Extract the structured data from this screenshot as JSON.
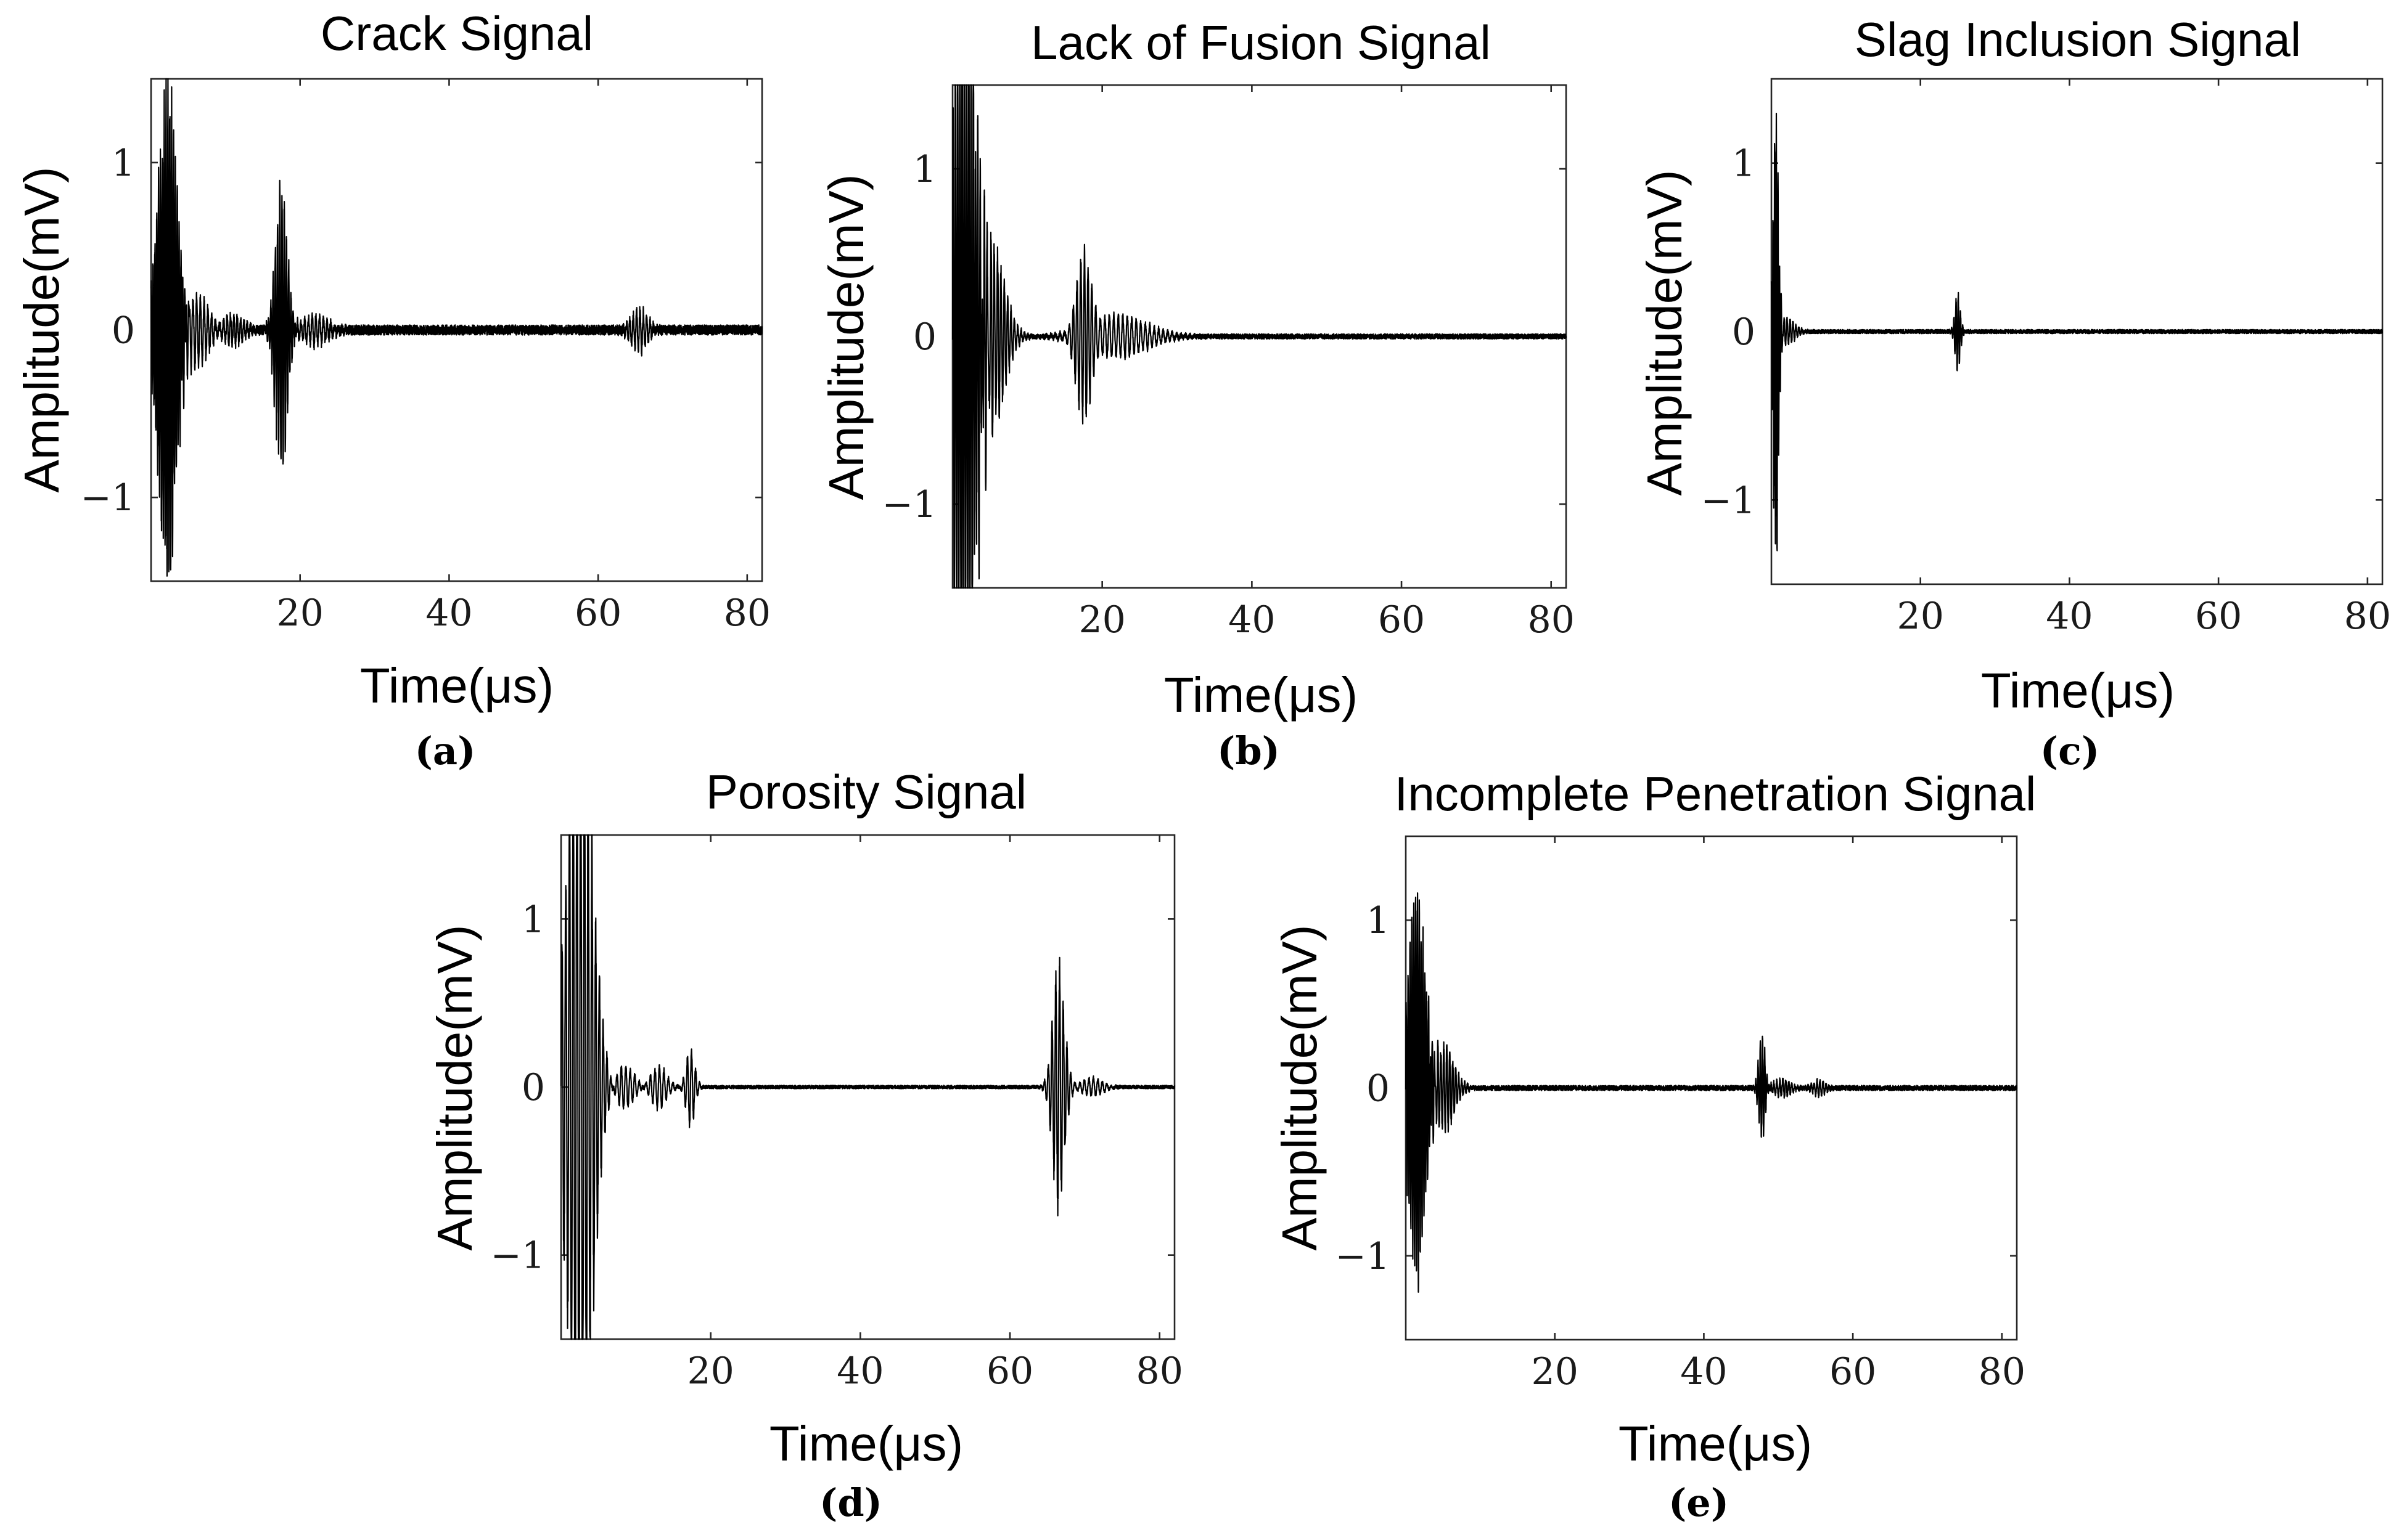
{
  "chart_data": [
    {
      "panel": "a",
      "panel_label": "(a)",
      "type": "line",
      "title": "Crack Signal",
      "xlabel": "Time(μs)",
      "ylabel": "Amplitude(mV)",
      "xlim": [
        0,
        82
      ],
      "ylim": [
        -1.5,
        1.5
      ],
      "xticks": [
        20,
        40,
        60,
        80
      ],
      "yticks": [
        -1,
        0,
        1
      ],
      "xtick_labels": [
        "20",
        "40",
        "60",
        "80"
      ],
      "ytick_labels": [
        "−1",
        "0",
        "1"
      ],
      "noise": 0.03,
      "bursts": [
        {
          "center_us": 2.2,
          "amplitude_mv": 1.45,
          "width_us": 1.7,
          "period_us": 0.25
        },
        {
          "center_us": 6.0,
          "amplitude_mv": 0.2,
          "width_us": 2.5,
          "period_us": 0.5
        },
        {
          "center_us": 11.0,
          "amplitude_mv": 0.08,
          "width_us": 2.0,
          "period_us": 0.45
        },
        {
          "center_us": 17.5,
          "amplitude_mv": 0.85,
          "width_us": 1.1,
          "period_us": 0.3
        },
        {
          "center_us": 22.0,
          "amplitude_mv": 0.08,
          "width_us": 2.5,
          "period_us": 0.5
        },
        {
          "center_us": 65.5,
          "amplitude_mv": 0.12,
          "width_us": 1.5,
          "period_us": 0.45
        }
      ]
    },
    {
      "panel": "b",
      "panel_label": "(b)",
      "type": "line",
      "title": "Lack of Fusion Signal",
      "xlabel": "Time(μs)",
      "ylabel": "Amplitude(mV)",
      "xlim": [
        0,
        82
      ],
      "ylim": [
        -1.5,
        1.5
      ],
      "xticks": [
        20,
        40,
        60,
        80
      ],
      "yticks": [
        -1,
        0,
        1
      ],
      "xtick_labels": [
        "20",
        "40",
        "60",
        "80"
      ],
      "ytick_labels": [
        "−1",
        "0",
        "1"
      ],
      "noise": 0.015,
      "bursts": [
        {
          "center_us": 1.5,
          "amplitude_mv": 2.2,
          "width_us": 2.2,
          "period_us": 0.3
        },
        {
          "center_us": 5.0,
          "amplitude_mv": 0.55,
          "width_us": 2.5,
          "period_us": 0.45
        },
        {
          "center_us": 17.5,
          "amplitude_mv": 0.55,
          "width_us": 1.2,
          "period_us": 0.5
        },
        {
          "center_us": 22.0,
          "amplitude_mv": 0.12,
          "width_us": 5.5,
          "period_us": 0.6
        }
      ]
    },
    {
      "panel": "c",
      "panel_label": "(c)",
      "type": "line",
      "title": "Slag Inclusion Signal",
      "xlabel": "Time(μs)",
      "ylabel": "Amplitude(mV)",
      "xlim": [
        0,
        82
      ],
      "ylim": [
        -1.5,
        1.5
      ],
      "xticks": [
        20,
        40,
        60,
        80
      ],
      "yticks": [
        -1,
        0,
        1
      ],
      "xtick_labels": [
        "20",
        "40",
        "60",
        "80"
      ],
      "ytick_labels": [
        "−1",
        "0",
        "1"
      ],
      "noise": 0.012,
      "bursts": [
        {
          "center_us": 0.6,
          "amplitude_mv": 1.3,
          "width_us": 0.5,
          "period_us": 0.22
        },
        {
          "center_us": 2.0,
          "amplitude_mv": 0.08,
          "width_us": 1.5,
          "period_us": 0.4
        },
        {
          "center_us": 25.0,
          "amplitude_mv": 0.22,
          "width_us": 0.5,
          "period_us": 0.3
        }
      ]
    },
    {
      "panel": "d",
      "panel_label": "(d)",
      "type": "line",
      "title": "Porosity Signal",
      "xlabel": "Time(μs)",
      "ylabel": "Amplitude(mV)",
      "xlim": [
        0,
        82
      ],
      "ylim": [
        -1.5,
        1.5
      ],
      "xticks": [
        20,
        40,
        60,
        80
      ],
      "yticks": [
        -1,
        0,
        1
      ],
      "xtick_labels": [
        "20",
        "40",
        "60",
        "80"
      ],
      "ytick_labels": [
        "−1",
        "0",
        "1"
      ],
      "noise": 0.01,
      "bursts": [
        {
          "center_us": 2.5,
          "amplitude_mv": 2.3,
          "width_us": 2.3,
          "period_us": 0.5
        },
        {
          "center_us": 8.5,
          "amplitude_mv": 0.12,
          "width_us": 1.8,
          "period_us": 0.6
        },
        {
          "center_us": 13.0,
          "amplitude_mv": 0.12,
          "width_us": 1.5,
          "period_us": 0.6
        },
        {
          "center_us": 17.3,
          "amplitude_mv": 0.22,
          "width_us": 0.8,
          "period_us": 0.55
        },
        {
          "center_us": 66.5,
          "amplitude_mv": 0.7,
          "width_us": 1.1,
          "period_us": 0.5
        },
        {
          "center_us": 71.0,
          "amplitude_mv": 0.05,
          "width_us": 2.0,
          "period_us": 0.6
        }
      ]
    },
    {
      "panel": "e",
      "panel_label": "(e)",
      "type": "line",
      "title": "Incomplete Penetration Signal",
      "xlabel": "Time(μs)",
      "ylabel": "Amplitude(mV)",
      "xlim": [
        0,
        82
      ],
      "ylim": [
        -1.5,
        1.5
      ],
      "xticks": [
        20,
        40,
        60,
        80
      ],
      "yticks": [
        -1,
        0,
        1
      ],
      "xtick_labels": [
        "20",
        "40",
        "60",
        "80"
      ],
      "ytick_labels": [
        "−1",
        "0",
        "1"
      ],
      "noise": 0.015,
      "bursts": [
        {
          "center_us": 1.5,
          "amplitude_mv": 1.1,
          "width_us": 1.6,
          "period_us": 0.25
        },
        {
          "center_us": 5.0,
          "amplitude_mv": 0.25,
          "width_us": 2.0,
          "period_us": 0.4
        },
        {
          "center_us": 47.8,
          "amplitude_mv": 0.3,
          "width_us": 0.6,
          "period_us": 0.3
        },
        {
          "center_us": 50.5,
          "amplitude_mv": 0.05,
          "width_us": 1.5,
          "period_us": 0.4
        },
        {
          "center_us": 55.5,
          "amplitude_mv": 0.04,
          "width_us": 1.2,
          "period_us": 0.4
        }
      ]
    }
  ]
}
